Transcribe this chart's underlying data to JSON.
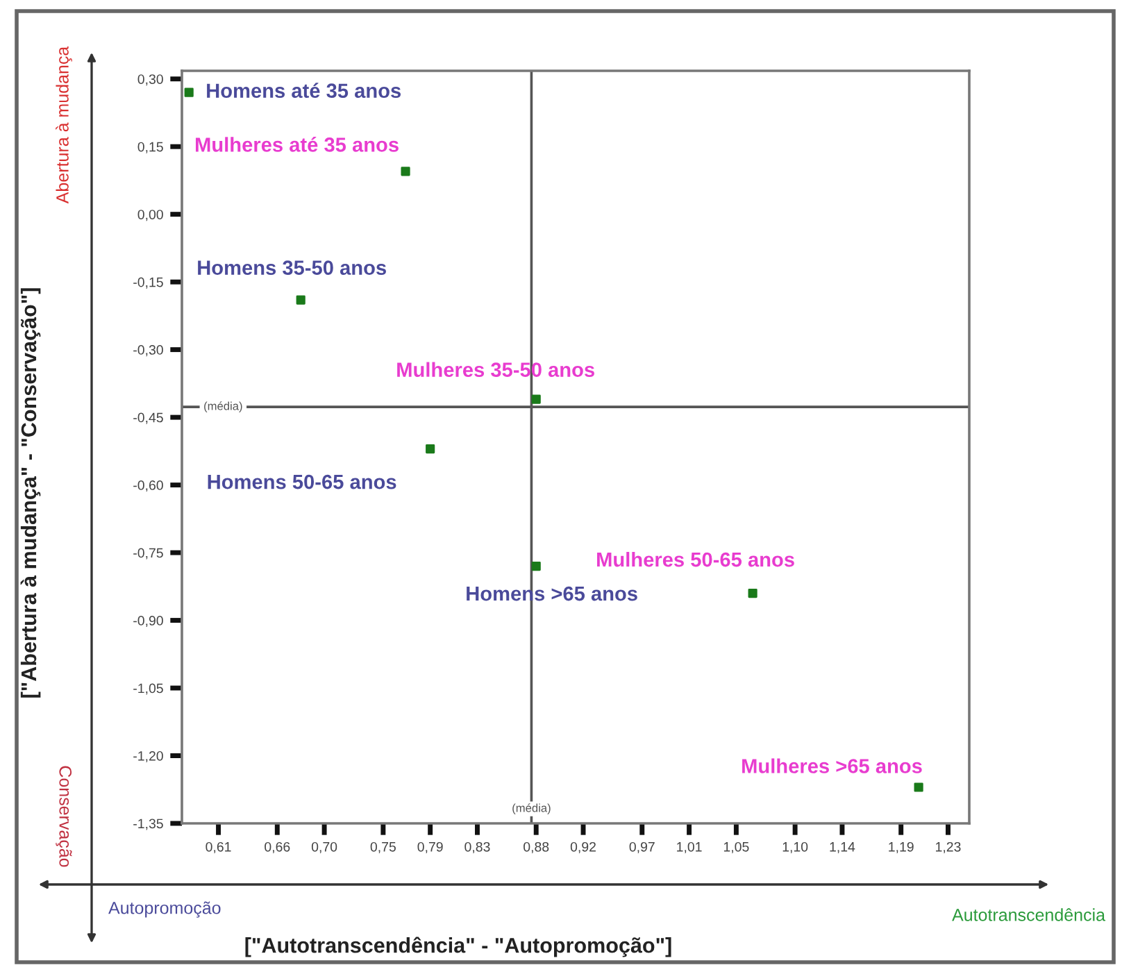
{
  "chart_data": {
    "type": "scatter",
    "xlabel": "[\"Autotranscendência\" - \"Autopromoção\"]",
    "ylabel": "[\"Abertura à mudança\" - \"Conservação\"]",
    "x": [
      0.585,
      0.769,
      0.68,
      0.88,
      0.79,
      0.88,
      1.064,
      1.205
    ],
    "series": [
      {
        "color": "#1a7a1a",
        "values": [
          0.27,
          0.095,
          -0.19,
          -0.41,
          -0.52,
          -0.78,
          -0.84,
          -1.27
        ]
      }
    ],
    "marker": "square",
    "xlim": [
      0.579,
      1.248
    ],
    "ylim": [
      -1.35,
      0.318
    ],
    "xticks": [
      {
        "value": 0.61,
        "label": "0,61"
      },
      {
        "value": 0.66,
        "label": "0,66"
      },
      {
        "value": 0.7,
        "label": "0,70"
      },
      {
        "value": 0.75,
        "label": "0,75"
      },
      {
        "value": 0.79,
        "label": "0,79"
      },
      {
        "value": 0.83,
        "label": "0,83"
      },
      {
        "value": 0.88,
        "label": "0,88"
      },
      {
        "value": 0.92,
        "label": "0,92"
      },
      {
        "value": 0.97,
        "label": "0,97"
      },
      {
        "value": 1.01,
        "label": "1,01"
      },
      {
        "value": 1.05,
        "label": "1,05"
      },
      {
        "value": 1.1,
        "label": "1,10"
      },
      {
        "value": 1.14,
        "label": "1,14"
      },
      {
        "value": 1.19,
        "label": "1,19"
      },
      {
        "value": 1.23,
        "label": "1,23"
      }
    ],
    "yticks": [
      {
        "value": 0.3,
        "label": "0,30"
      },
      {
        "value": 0.15,
        "label": "0,15"
      },
      {
        "value": 0,
        "label": "0,00"
      },
      {
        "value": -0.15,
        "label": "-0,15"
      },
      {
        "value": -0.3,
        "label": "-0,30"
      },
      {
        "value": -0.45,
        "label": "-0,45"
      },
      {
        "value": -0.6,
        "label": "-0,60"
      },
      {
        "value": -0.75,
        "label": "-0,75"
      },
      {
        "value": -0.9,
        "label": "-0,90"
      },
      {
        "value": -1.05,
        "label": "-1,05"
      },
      {
        "value": -1.2,
        "label": "-1,20"
      },
      {
        "value": -1.35,
        "label": "-1,35"
      }
    ],
    "ref_lines": [
      {
        "axis": "x",
        "value": 0.876,
        "label": "(média)",
        "color": "#555555"
      },
      {
        "axis": "y",
        "value": -0.427,
        "label": "(média)",
        "color": "#555555"
      }
    ],
    "grid": false,
    "legend": false,
    "annotations": [
      {
        "text": "Homens até 35 anos",
        "x": 0.585,
        "y": 0.27
      },
      {
        "text": "Mulheres até 35 anos",
        "x": 0.769,
        "y": 0.095
      },
      {
        "text": "Homens 35-50 anos",
        "x": 0.68,
        "y": -0.19
      },
      {
        "text": "Mulheres 35-50 anos",
        "x": 0.88,
        "y": -0.41
      },
      {
        "text": "Homens 50-65 anos",
        "x": 0.79,
        "y": -0.52
      },
      {
        "text": "Homens >65 anos",
        "x": 0.88,
        "y": -0.78
      },
      {
        "text": "Mulheres 50-65 anos",
        "x": 1.064,
        "y": -0.84
      },
      {
        "text": "Mulheres >65 anos",
        "x": 1.205,
        "y": -1.27
      },
      "Abertura à mudança",
      "Conservação",
      "Autopromoção",
      "Autotranscendência"
    ]
  }
}
